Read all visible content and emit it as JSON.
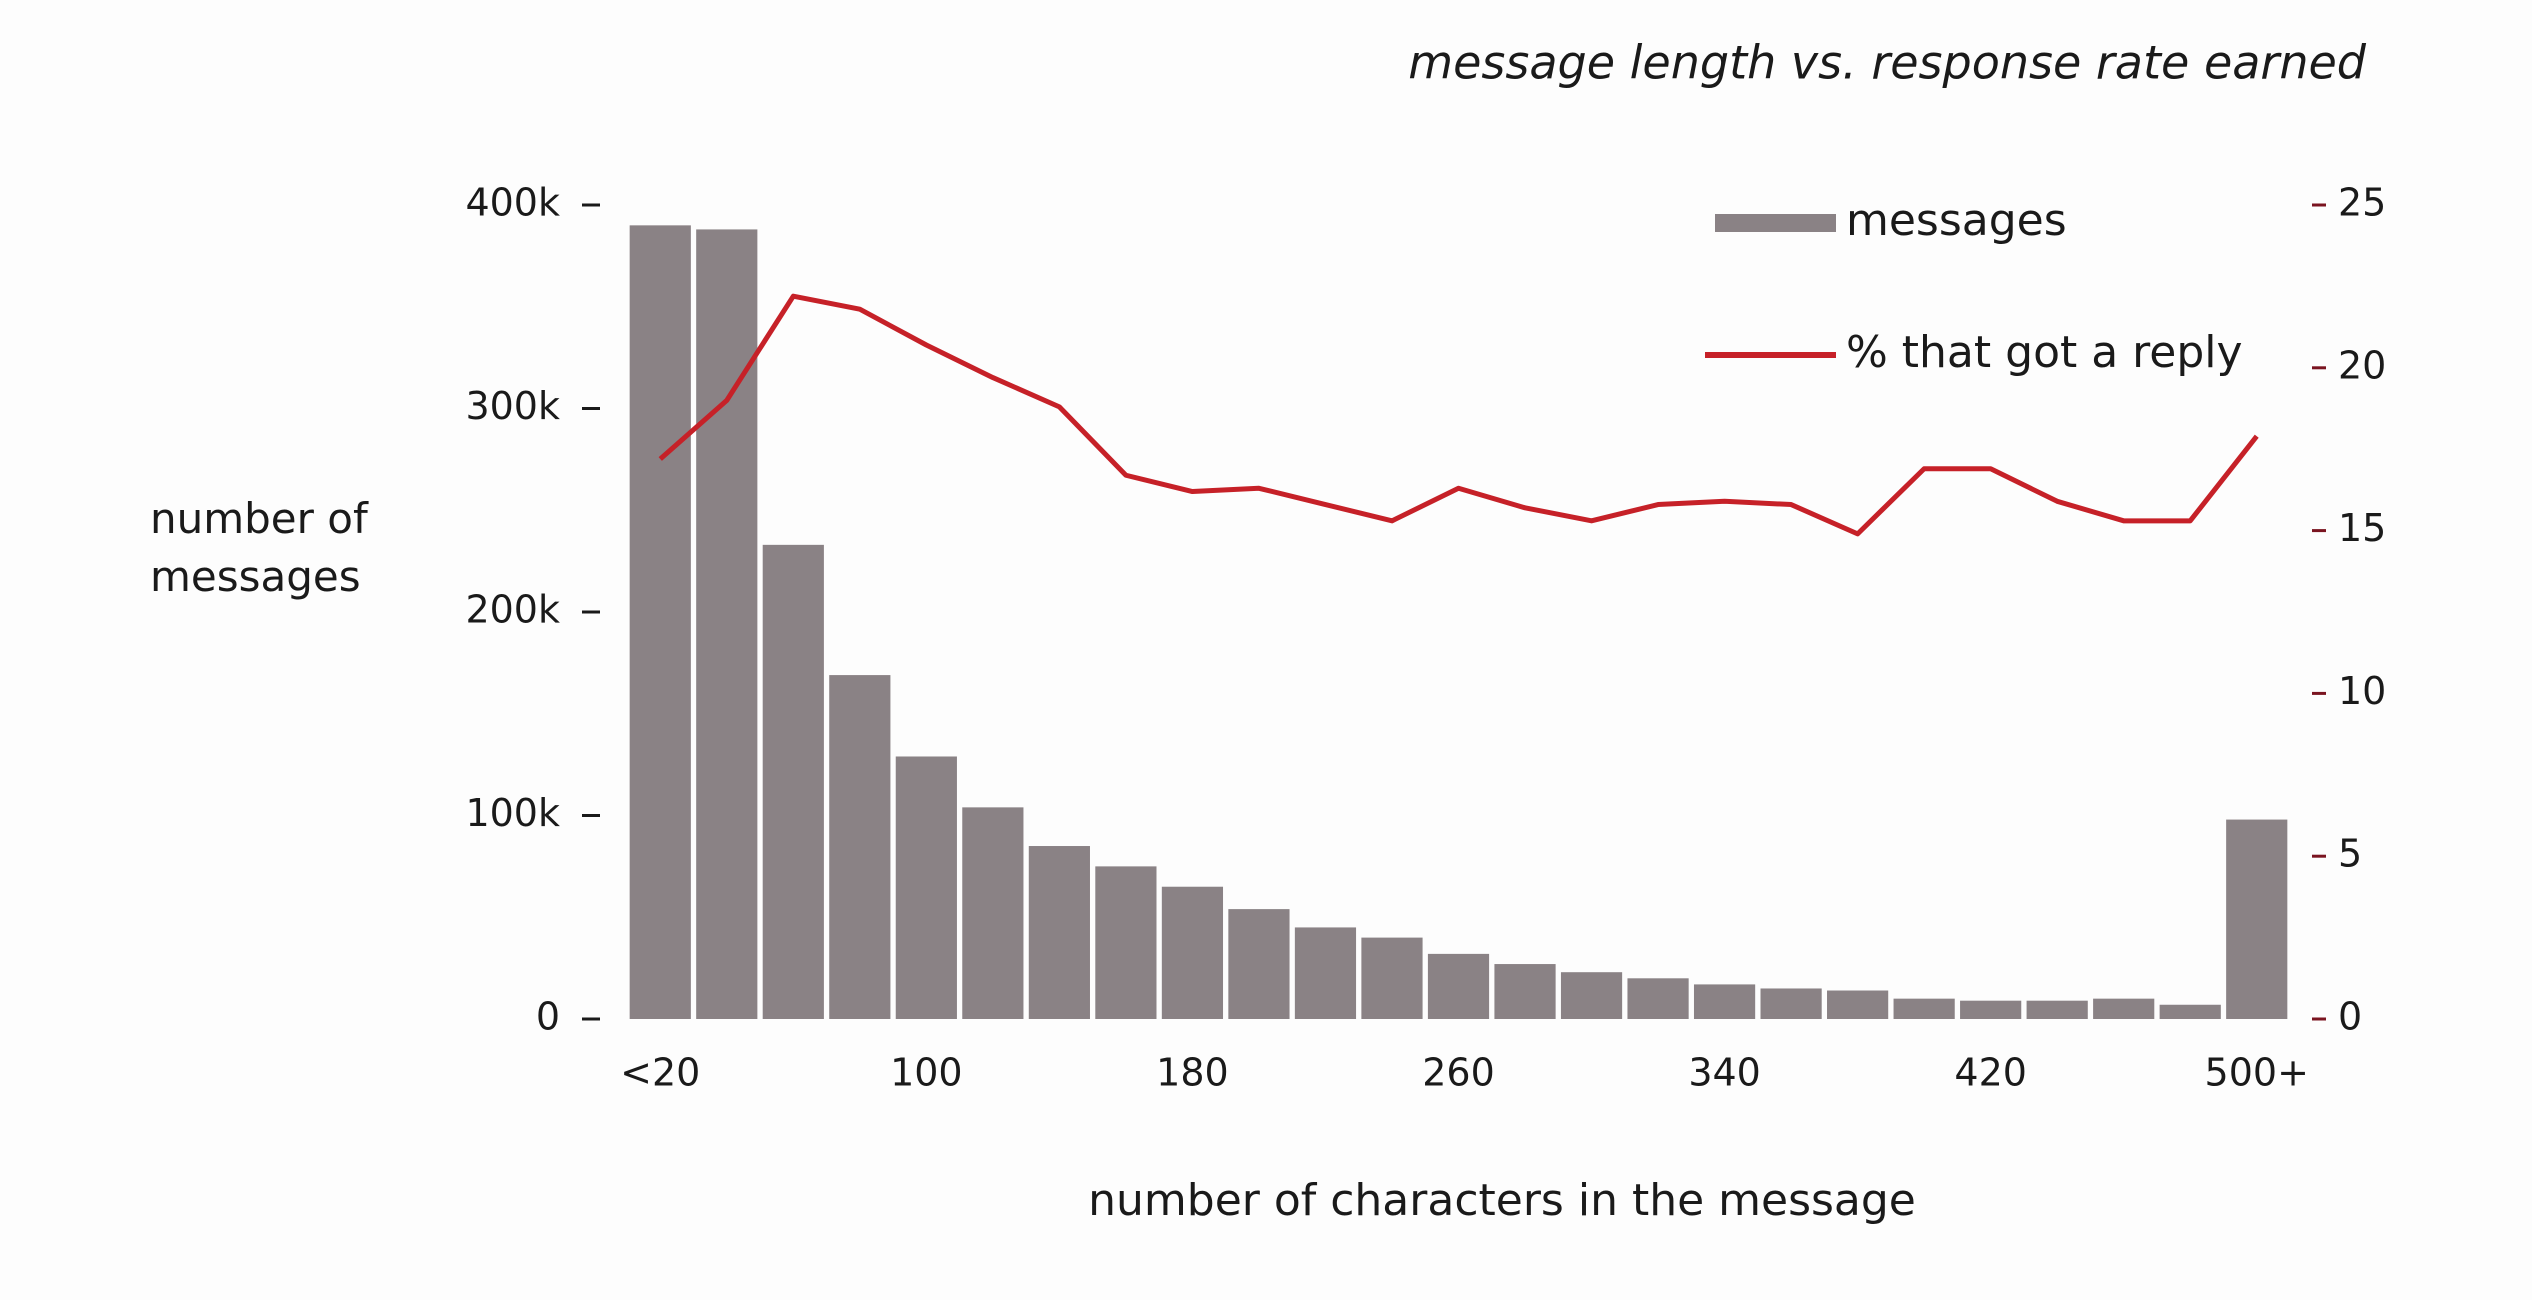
{
  "chart_data": {
    "type": "bar-line",
    "title": "message length vs. response rate earned",
    "x_label": "number of characters in the message",
    "y_label": "number of messages",
    "categories": [
      "<20",
      null,
      null,
      null,
      "100",
      null,
      null,
      null,
      "180",
      null,
      null,
      null,
      "260",
      null,
      null,
      null,
      "340",
      null,
      null,
      null,
      "420",
      null,
      null,
      null,
      "500+"
    ],
    "series": [
      {
        "name": "messages",
        "type": "bar",
        "color": "#8a8285",
        "values": [
          390000,
          388000,
          233000,
          169000,
          129000,
          104000,
          85000,
          75000,
          65000,
          54000,
          45000,
          40000,
          32000,
          27000,
          23000,
          20000,
          17000,
          15000,
          14000,
          10000,
          9000,
          9000,
          10000,
          7000,
          98000
        ]
      },
      {
        "name": "% that got a reply",
        "type": "line",
        "axis": "y2",
        "color": "#c62128",
        "values": [
          17.2,
          19.0,
          22.2,
          21.8,
          20.7,
          19.7,
          18.8,
          16.7,
          16.2,
          16.3,
          15.8,
          15.3,
          16.3,
          15.7,
          15.3,
          15.8,
          15.9,
          15.8,
          14.9,
          16.9,
          16.9,
          15.9,
          15.3,
          15.3,
          17.9
        ]
      }
    ],
    "ylim": [
      0,
      400000
    ],
    "yticks": [
      0,
      {
        "value": 100000,
        "label": "100k"
      },
      {
        "value": 200000,
        "label": "200k"
      },
      {
        "value": 300000,
        "label": "300k"
      },
      {
        "value": 400000,
        "label": "400k"
      }
    ],
    "y2lim": [
      0,
      25
    ],
    "y2ticks": [
      0,
      5,
      10,
      15,
      20,
      25
    ],
    "y2_color": "#7a1420",
    "legend": "upper right"
  }
}
